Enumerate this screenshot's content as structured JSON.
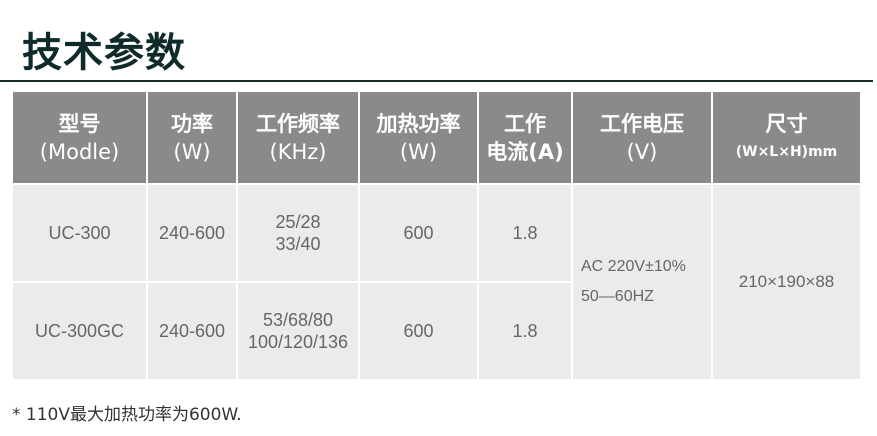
{
  "title": "技术参数",
  "headers": [
    {
      "l1": "型号",
      "l2": "(Modle)"
    },
    {
      "l1": "功率",
      "l2": "(W)"
    },
    {
      "l1": "工作频率",
      "l2": "(KHz)"
    },
    {
      "l1": "加热功率",
      "l2": "(W)"
    },
    {
      "l1": "工作",
      "l2": "电流(A)"
    },
    {
      "l1": "工作电压",
      "l2": "(V)"
    },
    {
      "l1": "尺寸",
      "l2": "(W×L×H)mm"
    }
  ],
  "rows": [
    {
      "model": "UC-300",
      "power": "240-600",
      "freq1": "25/28",
      "freq2": "33/40",
      "heat": "600",
      "current": "1.8"
    },
    {
      "model": "UC-300GC",
      "power": "240-600",
      "freq1": "53/68/80",
      "freq2": "100/120/136",
      "heat": "600",
      "current": "1.8"
    }
  ],
  "voltage": {
    "l1": "AC 220V±10%",
    "l2": "50—60HZ"
  },
  "size": "210×190×88",
  "note": "* 110V最大加热功率为600W."
}
